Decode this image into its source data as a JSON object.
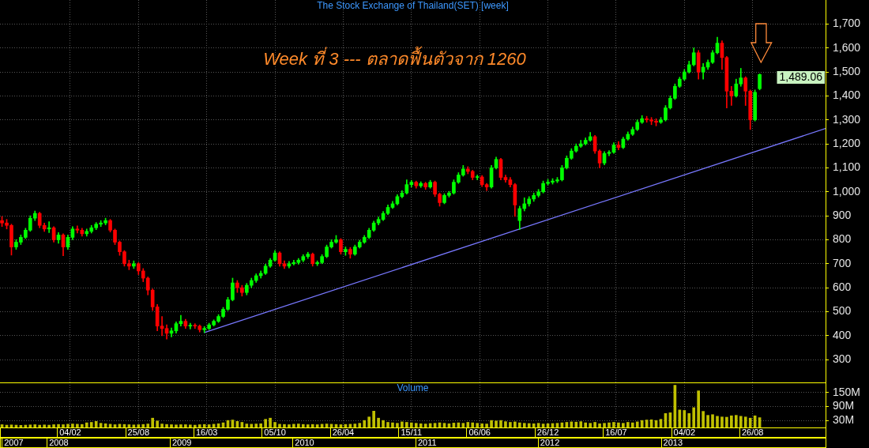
{
  "chart_data": [
    {
      "type": "candlestick",
      "title": "The Stock Exchange of Thailand(SET) [week]",
      "x": [
        "2007-07-16",
        "2007-07-30",
        "2007-08-13",
        "2007-08-27",
        "2007-09-10",
        "2007-09-24",
        "2007-10-08",
        "2007-10-22",
        "2007-11-05",
        "2007-11-19",
        "2007-12-03",
        "2007-12-17",
        "2007-12-31",
        "2008-01-14",
        "2008-01-28",
        "2008-02-11",
        "2008-02-25",
        "2008-03-10",
        "2008-03-24",
        "2008-04-07",
        "2008-04-21",
        "2008-05-05",
        "2008-05-19",
        "2008-06-02",
        "2008-06-16",
        "2008-06-30",
        "2008-07-14",
        "2008-07-28",
        "2008-08-11",
        "2008-08-25",
        "2008-09-08",
        "2008-09-22",
        "2008-10-06",
        "2008-10-20",
        "2008-11-03",
        "2008-11-17",
        "2008-12-01",
        "2008-12-15",
        "2008-12-29",
        "2009-01-12",
        "2009-01-26",
        "2009-02-09",
        "2009-02-23",
        "2009-03-09",
        "2009-03-23",
        "2009-04-06",
        "2009-04-20",
        "2009-05-04",
        "2009-05-18",
        "2009-06-01",
        "2009-06-15",
        "2009-06-29",
        "2009-07-13",
        "2009-07-27",
        "2009-08-10",
        "2009-08-24",
        "2009-09-07",
        "2009-09-21",
        "2009-10-05",
        "2009-10-19",
        "2009-11-02",
        "2009-11-16",
        "2009-11-30",
        "2009-12-14",
        "2009-12-28",
        "2010-01-11",
        "2010-01-25",
        "2010-02-08",
        "2010-02-22",
        "2010-03-08",
        "2010-03-22",
        "2010-04-05",
        "2010-04-19",
        "2010-05-03",
        "2010-05-17",
        "2010-05-31",
        "2010-06-14",
        "2010-06-28",
        "2010-07-12",
        "2010-07-26",
        "2010-08-09",
        "2010-08-23",
        "2010-09-06",
        "2010-09-20",
        "2010-10-04",
        "2010-10-18",
        "2010-11-01",
        "2010-11-15",
        "2010-11-29",
        "2010-12-13",
        "2010-12-27",
        "2011-01-10",
        "2011-01-24",
        "2011-02-07",
        "2011-02-21",
        "2011-03-07",
        "2011-03-21",
        "2011-04-04",
        "2011-04-18",
        "2011-05-02",
        "2011-05-16",
        "2011-05-30",
        "2011-06-13",
        "2011-06-27",
        "2011-07-11",
        "2011-07-25",
        "2011-08-08",
        "2011-08-22",
        "2011-09-05",
        "2011-09-19",
        "2011-10-03",
        "2011-10-17",
        "2011-10-31",
        "2011-11-14",
        "2011-11-28",
        "2011-12-12",
        "2011-12-26",
        "2012-01-09",
        "2012-01-23",
        "2012-02-06",
        "2012-02-20",
        "2012-03-05",
        "2012-03-19",
        "2012-04-02",
        "2012-04-16",
        "2012-04-30",
        "2012-05-14",
        "2012-05-28",
        "2012-06-11",
        "2012-06-25",
        "2012-07-09",
        "2012-07-23",
        "2012-08-06",
        "2012-08-20",
        "2012-09-03",
        "2012-09-17",
        "2012-10-01",
        "2012-10-15",
        "2012-10-29",
        "2012-11-12",
        "2012-11-26",
        "2012-12-10",
        "2012-12-24",
        "2013-01-07",
        "2013-01-21",
        "2013-02-04",
        "2013-02-18",
        "2013-03-04",
        "2013-03-18",
        "2013-04-01",
        "2013-04-15",
        "2013-04-29",
        "2013-05-13",
        "2013-05-27",
        "2013-06-10",
        "2013-06-24",
        "2013-07-08",
        "2013-07-22",
        "2013-08-05",
        "2013-08-19",
        "2013-09-02",
        "2013-09-16"
      ],
      "ohlc": [
        [
          880,
          897,
          855,
          870
        ],
        [
          870,
          885,
          845,
          860
        ],
        [
          860,
          865,
          736,
          770
        ],
        [
          770,
          800,
          760,
          790
        ],
        [
          790,
          820,
          780,
          810
        ],
        [
          810,
          848,
          805,
          840
        ],
        [
          840,
          900,
          835,
          890
        ],
        [
          890,
          920,
          880,
          910
        ],
        [
          910,
          915,
          850,
          860
        ],
        [
          860,
          870,
          835,
          845
        ],
        [
          845,
          875,
          830,
          850
        ],
        [
          850,
          855,
          790,
          800
        ],
        [
          800,
          830,
          785,
          820
        ],
        [
          820,
          825,
          733,
          770
        ],
        [
          770,
          820,
          760,
          810
        ],
        [
          810,
          855,
          800,
          845
        ],
        [
          845,
          858,
          828,
          840
        ],
        [
          840,
          848,
          815,
          825
        ],
        [
          825,
          845,
          815,
          835
        ],
        [
          835,
          860,
          828,
          850
        ],
        [
          850,
          872,
          842,
          865
        ],
        [
          865,
          880,
          855,
          870
        ],
        [
          870,
          890,
          862,
          880
        ],
        [
          880,
          885,
          832,
          840
        ],
        [
          840,
          845,
          780,
          790
        ],
        [
          790,
          795,
          735,
          750
        ],
        [
          750,
          755,
          690,
          700
        ],
        [
          700,
          715,
          675,
          690
        ],
        [
          690,
          712,
          680,
          700
        ],
        [
          700,
          705,
          655,
          670
        ],
        [
          670,
          680,
          625,
          640
        ],
        [
          640,
          645,
          570,
          590
        ],
        [
          590,
          595,
          505,
          520
        ],
        [
          520,
          530,
          420,
          440
        ],
        [
          440,
          480,
          400,
          430
        ],
        [
          430,
          445,
          386,
          410
        ],
        [
          410,
          432,
          395,
          420
        ],
        [
          420,
          458,
          410,
          450
        ],
        [
          450,
          485,
          440,
          460
        ],
        [
          460,
          468,
          430,
          440
        ],
        [
          440,
          452,
          428,
          442
        ],
        [
          442,
          450,
          430,
          440
        ],
        [
          440,
          445,
          415,
          425
        ],
        [
          425,
          438,
          413,
          430
        ],
        [
          430,
          452,
          425,
          445
        ],
        [
          445,
          466,
          440,
          460
        ],
        [
          460,
          488,
          455,
          480
        ],
        [
          480,
          518,
          475,
          510
        ],
        [
          510,
          560,
          505,
          550
        ],
        [
          550,
          640,
          545,
          620
        ],
        [
          620,
          630,
          580,
          600
        ],
        [
          600,
          610,
          565,
          580
        ],
        [
          580,
          618,
          570,
          610
        ],
        [
          610,
          640,
          600,
          630
        ],
        [
          630,
          658,
          622,
          650
        ],
        [
          650,
          670,
          640,
          660
        ],
        [
          660,
          698,
          655,
          690
        ],
        [
          690,
          722,
          685,
          715
        ],
        [
          715,
          755,
          710,
          745
        ],
        [
          745,
          750,
          690,
          700
        ],
        [
          700,
          712,
          680,
          690
        ],
        [
          690,
          710,
          682,
          700
        ],
        [
          700,
          715,
          695,
          705
        ],
        [
          705,
          722,
          698,
          715
        ],
        [
          715,
          738,
          708,
          730
        ],
        [
          730,
          748,
          722,
          740
        ],
        [
          740,
          745,
          690,
          700
        ],
        [
          700,
          712,
          692,
          705
        ],
        [
          705,
          738,
          700,
          730
        ],
        [
          730,
          778,
          725,
          770
        ],
        [
          770,
          800,
          765,
          790
        ],
        [
          790,
          818,
          785,
          800
        ],
        [
          800,
          805,
          740,
          750
        ],
        [
          750,
          770,
          735,
          760
        ],
        [
          760,
          768,
          723,
          740
        ],
        [
          740,
          778,
          735,
          770
        ],
        [
          770,
          798,
          765,
          790
        ],
        [
          790,
          818,
          785,
          810
        ],
        [
          810,
          848,
          805,
          840
        ],
        [
          840,
          878,
          835,
          870
        ],
        [
          870,
          895,
          862,
          885
        ],
        [
          885,
          918,
          880,
          910
        ],
        [
          910,
          945,
          905,
          935
        ],
        [
          935,
          960,
          930,
          950
        ],
        [
          950,
          988,
          945,
          980
        ],
        [
          980,
          1005,
          975,
          995
        ],
        [
          995,
          1050,
          990,
          1030
        ],
        [
          1030,
          1048,
          1020,
          1040
        ],
        [
          1040,
          1045,
          1015,
          1025
        ],
        [
          1025,
          1042,
          1018,
          1035
        ],
        [
          1035,
          1040,
          1010,
          1020
        ],
        [
          1020,
          1048,
          1015,
          1040
        ],
        [
          1040,
          1045,
          980,
          990
        ],
        [
          990,
          995,
          940,
          955
        ],
        [
          955,
          992,
          950,
          985
        ],
        [
          985,
          1002,
          978,
          995
        ],
        [
          995,
          1050,
          990,
          1040
        ],
        [
          1040,
          1080,
          1035,
          1070
        ],
        [
          1070,
          1110,
          1065,
          1095
        ],
        [
          1095,
          1105,
          1075,
          1085
        ],
        [
          1085,
          1090,
          1050,
          1060
        ],
        [
          1060,
          1070,
          1050,
          1062
        ],
        [
          1062,
          1068,
          1022,
          1030
        ],
        [
          1030,
          1035,
          1005,
          1020
        ],
        [
          1020,
          1110,
          1015,
          1100
        ],
        [
          1100,
          1145,
          1095,
          1135
        ],
        [
          1135,
          1140,
          1050,
          1060
        ],
        [
          1060,
          1070,
          1040,
          1050
        ],
        [
          1050,
          1060,
          1020,
          1030
        ],
        [
          1030,
          1035,
          897,
          945
        ],
        [
          880,
          940,
          842,
          930
        ],
        [
          930,
          975,
          920,
          950
        ],
        [
          950,
          980,
          940,
          970
        ],
        [
          970,
          995,
          960,
          985
        ],
        [
          985,
          1010,
          978,
          1000
        ],
        [
          1000,
          1045,
          995,
          1035
        ],
        [
          1035,
          1052,
          1028,
          1040
        ],
        [
          1040,
          1055,
          1032,
          1045
        ],
        [
          1045,
          1060,
          1038,
          1050
        ],
        [
          1050,
          1110,
          1045,
          1100
        ],
        [
          1100,
          1150,
          1095,
          1140
        ],
        [
          1140,
          1180,
          1135,
          1170
        ],
        [
          1170,
          1200,
          1165,
          1190
        ],
        [
          1190,
          1215,
          1185,
          1200
        ],
        [
          1200,
          1225,
          1195,
          1215
        ],
        [
          1215,
          1248,
          1210,
          1230
        ],
        [
          1230,
          1235,
          1160,
          1170
        ],
        [
          1170,
          1175,
          1100,
          1120
        ],
        [
          1120,
          1168,
          1112,
          1160
        ],
        [
          1160,
          1172,
          1150,
          1165
        ],
        [
          1165,
          1205,
          1160,
          1195
        ],
        [
          1195,
          1210,
          1175,
          1185
        ],
        [
          1185,
          1228,
          1180,
          1220
        ],
        [
          1220,
          1250,
          1215,
          1240
        ],
        [
          1240,
          1270,
          1235,
          1260
        ],
        [
          1260,
          1300,
          1255,
          1290
        ],
        [
          1290,
          1318,
          1285,
          1305
        ],
        [
          1305,
          1315,
          1290,
          1300
        ],
        [
          1300,
          1310,
          1280,
          1295
        ],
        [
          1295,
          1305,
          1275,
          1290
        ],
        [
          1290,
          1310,
          1285,
          1300
        ],
        [
          1300,
          1360,
          1295,
          1350
        ],
        [
          1350,
          1400,
          1345,
          1390
        ],
        [
          1390,
          1450,
          1385,
          1440
        ],
        [
          1440,
          1478,
          1435,
          1470
        ],
        [
          1470,
          1510,
          1465,
          1500
        ],
        [
          1500,
          1545,
          1495,
          1530
        ],
        [
          1530,
          1600,
          1525,
          1580
        ],
        [
          1580,
          1590,
          1470,
          1500
        ],
        [
          1500,
          1535,
          1470,
          1520
        ],
        [
          1520,
          1550,
          1510,
          1540
        ],
        [
          1540,
          1590,
          1535,
          1580
        ],
        [
          1580,
          1645,
          1575,
          1620
        ],
        [
          1620,
          1630,
          1510,
          1560
        ],
        [
          1560,
          1565,
          1350,
          1420
        ],
        [
          1420,
          1440,
          1360,
          1400
        ],
        [
          1400,
          1470,
          1395,
          1450
        ],
        [
          1450,
          1515,
          1440,
          1475
        ],
        [
          1475,
          1480,
          1360,
          1420
        ],
        [
          1420,
          1425,
          1260,
          1300
        ],
        [
          1300,
          1425,
          1295,
          1415
        ],
        [
          1430,
          1492,
          1425,
          1489.06
        ]
      ],
      "colors": [
        "#ff0000",
        "#ff0000",
        "#ff0000",
        "#00ff00",
        "#00ff00",
        "#00ff00",
        "#00ff00",
        "#00ff00",
        "#ff0000",
        "#ff0000",
        "#00ff00",
        "#ff0000",
        "#00ff00",
        "#ff0000",
        "#00ff00",
        "#00ff00",
        "#ff0000",
        "#ff0000",
        "#00ff00",
        "#00ff00",
        "#00ff00",
        "#00ff00",
        "#00ff00",
        "#ff0000",
        "#ff0000",
        "#ff0000",
        "#ff0000",
        "#ff0000",
        "#00ff00",
        "#ff0000",
        "#ff0000",
        "#ff0000",
        "#ff0000",
        "#ff0000",
        "#ff0000",
        "#ff0000",
        "#00ff00",
        "#00ff00",
        "#00ff00",
        "#ff0000",
        "#00ff00",
        "#ff0000",
        "#ff0000",
        "#00ff00",
        "#00ff00",
        "#00ff00",
        "#00ff00",
        "#00ff00",
        "#00ff00",
        "#00ff00",
        "#ff0000",
        "#ff0000",
        "#00ff00",
        "#00ff00",
        "#00ff00",
        "#00ff00",
        "#00ff00",
        "#00ff00",
        "#00ff00",
        "#ff0000",
        "#ff0000",
        "#00ff00",
        "#00ff00",
        "#00ff00",
        "#00ff00",
        "#00ff00",
        "#ff0000",
        "#00ff00",
        "#00ff00",
        "#00ff00",
        "#00ff00",
        "#00ff00",
        "#ff0000",
        "#00ff00",
        "#ff0000",
        "#00ff00",
        "#00ff00",
        "#00ff00",
        "#00ff00",
        "#00ff00",
        "#00ff00",
        "#00ff00",
        "#00ff00",
        "#00ff00",
        "#00ff00",
        "#00ff00",
        "#00ff00",
        "#00ff00",
        "#ff0000",
        "#00ff00",
        "#ff0000",
        "#00ff00",
        "#ff0000",
        "#ff0000",
        "#00ff00",
        "#00ff00",
        "#00ff00",
        "#00ff00",
        "#00ff00",
        "#ff0000",
        "#ff0000",
        "#00ff00",
        "#ff0000",
        "#ff0000",
        "#00ff00",
        "#00ff00",
        "#ff0000",
        "#ff0000",
        "#ff0000",
        "#ff0000",
        "#00ff00",
        "#00ff00",
        "#00ff00",
        "#00ff00",
        "#00ff00",
        "#00ff00",
        "#00ff00",
        "#00ff00",
        "#00ff00",
        "#00ff00",
        "#00ff00",
        "#00ff00",
        "#00ff00",
        "#00ff00",
        "#00ff00",
        "#00ff00",
        "#ff0000",
        "#ff0000",
        "#00ff00",
        "#00ff00",
        "#00ff00",
        "#ff0000",
        "#00ff00",
        "#00ff00",
        "#00ff00",
        "#00ff00",
        "#00ff00",
        "#ff0000",
        "#ff0000",
        "#ff0000",
        "#00ff00",
        "#00ff00",
        "#00ff00",
        "#00ff00",
        "#00ff00",
        "#00ff00",
        "#00ff00",
        "#00ff00",
        "#ff0000",
        "#00ff00",
        "#00ff00",
        "#00ff00",
        "#00ff00",
        "#ff0000",
        "#ff0000",
        "#ff0000",
        "#00ff00",
        "#00ff00",
        "#ff0000",
        "#ff0000",
        "#00ff00",
        "#00ff00"
      ],
      "series": [
        {
          "type": "line",
          "color": "#7878ff",
          "x": [
            "2009-03-09",
            "2014-03-31"
          ],
          "values": [
            413,
            1264
          ]
        }
      ],
      "xlim": [
        "2007-07-10",
        "2014-03-31"
      ],
      "xticks": [
        {
          "value": "2008-02-04",
          "label": null
        },
        {
          "value": "2008-08-25",
          "label": null
        },
        {
          "value": "2009-03-16",
          "label": null
        },
        {
          "value": "2009-10-05",
          "label": null
        },
        {
          "value": "2010-04-26",
          "label": null
        },
        {
          "value": "2010-11-15",
          "label": null
        },
        {
          "value": "2011-06-06",
          "label": null
        },
        {
          "value": "2011-12-26",
          "label": null
        },
        {
          "value": "2012-07-16",
          "label": null
        },
        {
          "value": "2013-02-04",
          "label": null
        },
        {
          "value": "2013-08-26",
          "label": null
        }
      ],
      "ylim": [
        205,
        1800
      ],
      "yticks": [
        300,
        400,
        500,
        600,
        700,
        800,
        900,
        {
          "value": 1000,
          "label": "1,000"
        },
        {
          "value": 1100,
          "label": "1,100"
        },
        {
          "value": 1200,
          "label": "1,200"
        },
        {
          "value": 1300,
          "label": "1,300"
        },
        {
          "value": 1400,
          "label": "1,400"
        },
        {
          "value": 1500,
          "label": "1,500"
        },
        {
          "value": 1600,
          "label": "1,600"
        },
        {
          "value": 1700,
          "label": "1,700"
        }
      ],
      "grid": true,
      "tick_labels": "y",
      "annotations": [
        "Week ที่ 3 --- ตลาดฟื้นตัวจาก 1260",
        "1,489.06"
      ]
    },
    {
      "type": "bar",
      "title": "Volume",
      "x": [
        "2007-07-16",
        "2007-07-30",
        "2007-08-13",
        "2007-08-27",
        "2007-09-10",
        "2007-09-24",
        "2007-10-08",
        "2007-10-22",
        "2007-11-05",
        "2007-11-19",
        "2007-12-03",
        "2007-12-17",
        "2007-12-31",
        "2008-01-14",
        "2008-01-28",
        "2008-02-11",
        "2008-02-25",
        "2008-03-10",
        "2008-03-24",
        "2008-04-07",
        "2008-04-21",
        "2008-05-05",
        "2008-05-19",
        "2008-06-02",
        "2008-06-16",
        "2008-06-30",
        "2008-07-14",
        "2008-07-28",
        "2008-08-11",
        "2008-08-25",
        "2008-09-08",
        "2008-09-22",
        "2008-10-06",
        "2008-10-20",
        "2008-11-03",
        "2008-11-17",
        "2008-12-01",
        "2008-12-15",
        "2008-12-29",
        "2009-01-12",
        "2009-01-26",
        "2009-02-09",
        "2009-02-23",
        "2009-03-09",
        "2009-03-23",
        "2009-04-06",
        "2009-04-20",
        "2009-05-04",
        "2009-05-18",
        "2009-06-01",
        "2009-06-15",
        "2009-06-29",
        "2009-07-13",
        "2009-07-27",
        "2009-08-10",
        "2009-08-24",
        "2009-09-07",
        "2009-09-21",
        "2009-10-05",
        "2009-10-19",
        "2009-11-02",
        "2009-11-16",
        "2009-11-30",
        "2009-12-14",
        "2009-12-28",
        "2010-01-11",
        "2010-01-25",
        "2010-02-08",
        "2010-02-22",
        "2010-03-08",
        "2010-03-22",
        "2010-04-05",
        "2010-04-19",
        "2010-05-03",
        "2010-05-17",
        "2010-05-31",
        "2010-06-14",
        "2010-06-28",
        "2010-07-12",
        "2010-07-26",
        "2010-08-09",
        "2010-08-23",
        "2010-09-06",
        "2010-09-20",
        "2010-10-04",
        "2010-10-18",
        "2010-11-01",
        "2010-11-15",
        "2010-11-29",
        "2010-12-13",
        "2010-12-27",
        "2011-01-10",
        "2011-01-24",
        "2011-02-07",
        "2011-02-21",
        "2011-03-07",
        "2011-03-21",
        "2011-04-04",
        "2011-04-18",
        "2011-05-02",
        "2011-05-16",
        "2011-05-30",
        "2011-06-13",
        "2011-06-27",
        "2011-07-11",
        "2011-07-25",
        "2011-08-08",
        "2011-08-22",
        "2011-09-05",
        "2011-09-19",
        "2011-10-03",
        "2011-10-17",
        "2011-10-31",
        "2011-11-14",
        "2011-11-28",
        "2011-12-12",
        "2011-12-26",
        "2012-01-09",
        "2012-01-23",
        "2012-02-06",
        "2012-02-20",
        "2012-03-05",
        "2012-03-19",
        "2012-04-02",
        "2012-04-16",
        "2012-04-30",
        "2012-05-14",
        "2012-05-28",
        "2012-06-11",
        "2012-06-25",
        "2012-07-09",
        "2012-07-23",
        "2012-08-06",
        "2012-08-20",
        "2012-09-03",
        "2012-09-17",
        "2012-10-01",
        "2012-10-15",
        "2012-10-29",
        "2012-11-12",
        "2012-11-26",
        "2012-12-10",
        "2012-12-24",
        "2013-01-07",
        "2013-01-21",
        "2013-02-04",
        "2013-02-18",
        "2013-03-04",
        "2013-03-18",
        "2013-04-01",
        "2013-04-15",
        "2013-04-29",
        "2013-05-13",
        "2013-05-27",
        "2013-06-10",
        "2013-06-24",
        "2013-07-08",
        "2013-07-22",
        "2013-08-05",
        "2013-08-19",
        "2013-09-02",
        "2013-09-16"
      ],
      "values": [
        12,
        10,
        11,
        10,
        9,
        10,
        11,
        12,
        10,
        11,
        10,
        12,
        13,
        12,
        14,
        15,
        14,
        13,
        20,
        22,
        26,
        18,
        16,
        14,
        12,
        14,
        13,
        12,
        11,
        12,
        13,
        15,
        40,
        28,
        15,
        13,
        12,
        11,
        12,
        12,
        11,
        10,
        12,
        13,
        12,
        14,
        16,
        20,
        30,
        32,
        26,
        22,
        15,
        14,
        15,
        16,
        35,
        40,
        22,
        14,
        13,
        12,
        14,
        15,
        13,
        12,
        13,
        12,
        14,
        15,
        14,
        13,
        12,
        13,
        14,
        15,
        18,
        30,
        45,
        70,
        40,
        30,
        22,
        20,
        18,
        24,
        22,
        20,
        18,
        16,
        15,
        17,
        18,
        20,
        18,
        16,
        19,
        20,
        18,
        22,
        20,
        18,
        16,
        15,
        30,
        28,
        30,
        25,
        22,
        24,
        20,
        18,
        17,
        16,
        18,
        15,
        16,
        17,
        18,
        20,
        22,
        24,
        23,
        25,
        20,
        18,
        22,
        16,
        18,
        20,
        22,
        20,
        18,
        22,
        20,
        24,
        30,
        32,
        33,
        30,
        35,
        60,
        63,
        181,
        75,
        73,
        60,
        85,
        157,
        69,
        52,
        55,
        48,
        45,
        44,
        50,
        52,
        48,
        45,
        40,
        50,
        42
      ],
      "color": "#c0c000",
      "xlim": [
        "2007-07-10",
        "2014-03-31"
      ],
      "xticks": [
        {
          "value": "2008-02-04",
          "label": "04/02"
        },
        {
          "value": "2008-08-25",
          "label": "25/08"
        },
        {
          "value": "2009-03-16",
          "label": "16/03"
        },
        {
          "value": "2009-10-05",
          "label": "05/10"
        },
        {
          "value": "2010-04-26",
          "label": "26/04"
        },
        {
          "value": "2010-11-15",
          "label": "15/11"
        },
        {
          "value": "2011-06-06",
          "label": "06/06"
        },
        {
          "value": "2011-12-26",
          "label": "26/12"
        },
        {
          "value": "2012-07-16",
          "label": "16/07"
        },
        {
          "value": "2013-02-04",
          "label": "04/02"
        },
        {
          "value": "2013-08-26",
          "label": "26/08"
        }
      ],
      "x2lim": [
        "2007-07-10",
        "2014-03-31"
      ],
      "x2ticks": [
        {
          "value": "2007-08-20",
          "label": "2007"
        },
        {
          "value": "2008-01-01",
          "label": "2008"
        },
        {
          "value": "2009-01-01",
          "label": "2009"
        },
        {
          "value": "2010-01-01",
          "label": "2010"
        },
        {
          "value": "2011-01-01",
          "label": "2011"
        },
        {
          "value": "2012-01-01",
          "label": "2012"
        },
        {
          "value": "2013-01-01",
          "label": "2013"
        }
      ],
      "ylim": [
        0,
        193
      ],
      "yticks": [
        {
          "value": 30,
          "label": "30M"
        },
        {
          "value": 90,
          "label": "90M"
        },
        {
          "value": 150,
          "label": "150M"
        }
      ],
      "grid": true
    }
  ]
}
